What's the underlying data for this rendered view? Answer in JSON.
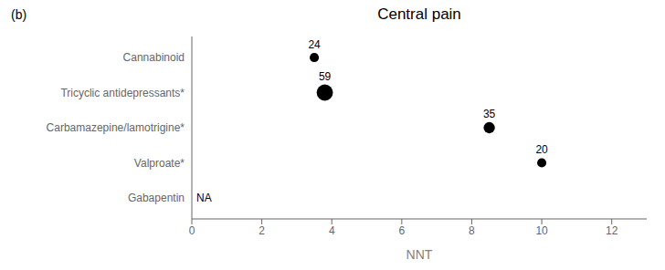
{
  "chart_data": {
    "type": "scatter",
    "title": "Central pain",
    "annotations": [
      "(b)"
    ],
    "xlabel": "NNT",
    "xlim": [
      0,
      13
    ],
    "xticks": [
      0,
      2,
      4,
      6,
      8,
      10,
      12
    ],
    "categories": [
      "Gabapentin",
      "Valproate*",
      "Carbamazepine/lamotrigine*",
      "Tricyclic antidepressants*",
      "Cannabinoid"
    ],
    "values": [
      null,
      10.0,
      8.5,
      3.8,
      3.5
    ],
    "labels": [
      "NA",
      "20",
      "35",
      "59",
      "24"
    ],
    "sizes": [
      null,
      8,
      12,
      25,
      8
    ],
    "color": "#000000"
  }
}
